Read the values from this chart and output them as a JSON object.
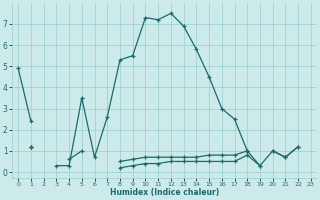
{
  "xlabel": "Humidex (Indice chaleur)",
  "background_color": "#cceaea",
  "grid_color": "#99cccc",
  "line_color": "#1a6b6b",
  "xlim": [
    -0.5,
    23.5
  ],
  "ylim": [
    -0.3,
    8.0
  ],
  "x_ticks": [
    0,
    1,
    2,
    3,
    4,
    5,
    6,
    7,
    8,
    9,
    10,
    11,
    12,
    13,
    14,
    15,
    16,
    17,
    18,
    19,
    20,
    21,
    22,
    23
  ],
  "y_ticks": [
    0,
    1,
    2,
    3,
    4,
    5,
    6,
    7
  ],
  "series": [
    {
      "x": [
        0,
        1,
        3,
        4,
        5,
        6,
        7,
        8,
        9,
        10,
        11,
        12,
        13,
        14,
        15,
        16,
        17,
        18,
        19,
        20,
        21,
        22
      ],
      "y": [
        4.9,
        2.4,
        0.3,
        0.3,
        3.5,
        0.7,
        2.6,
        5.3,
        5.5,
        7.3,
        7.2,
        7.5,
        6.9,
        5.8,
        4.5,
        3.0,
        2.5,
        1.0,
        0.3,
        1.0,
        0.7,
        1.2
      ],
      "breaks": [
        1
      ]
    },
    {
      "x": [
        1,
        4,
        5,
        18
      ],
      "y": [
        1.2,
        0.6,
        1.0,
        1.0
      ],
      "breaks": [
        0,
        2
      ]
    },
    {
      "x": [
        1,
        8,
        9,
        10,
        11,
        12,
        13,
        14,
        15,
        16,
        17,
        18,
        20,
        21,
        22
      ],
      "y": [
        1.2,
        0.5,
        0.6,
        0.7,
        0.7,
        0.7,
        0.7,
        0.7,
        0.8,
        0.8,
        0.8,
        1.0,
        1.0,
        0.7,
        1.2
      ],
      "breaks": [
        0,
        11
      ]
    },
    {
      "x": [
        1,
        8,
        9,
        10,
        11,
        12,
        13,
        14,
        15,
        16,
        17,
        18,
        19
      ],
      "y": [
        1.2,
        0.2,
        0.3,
        0.4,
        0.4,
        0.5,
        0.5,
        0.5,
        0.5,
        0.5,
        0.5,
        0.8,
        0.3
      ],
      "breaks": [
        0
      ]
    }
  ]
}
